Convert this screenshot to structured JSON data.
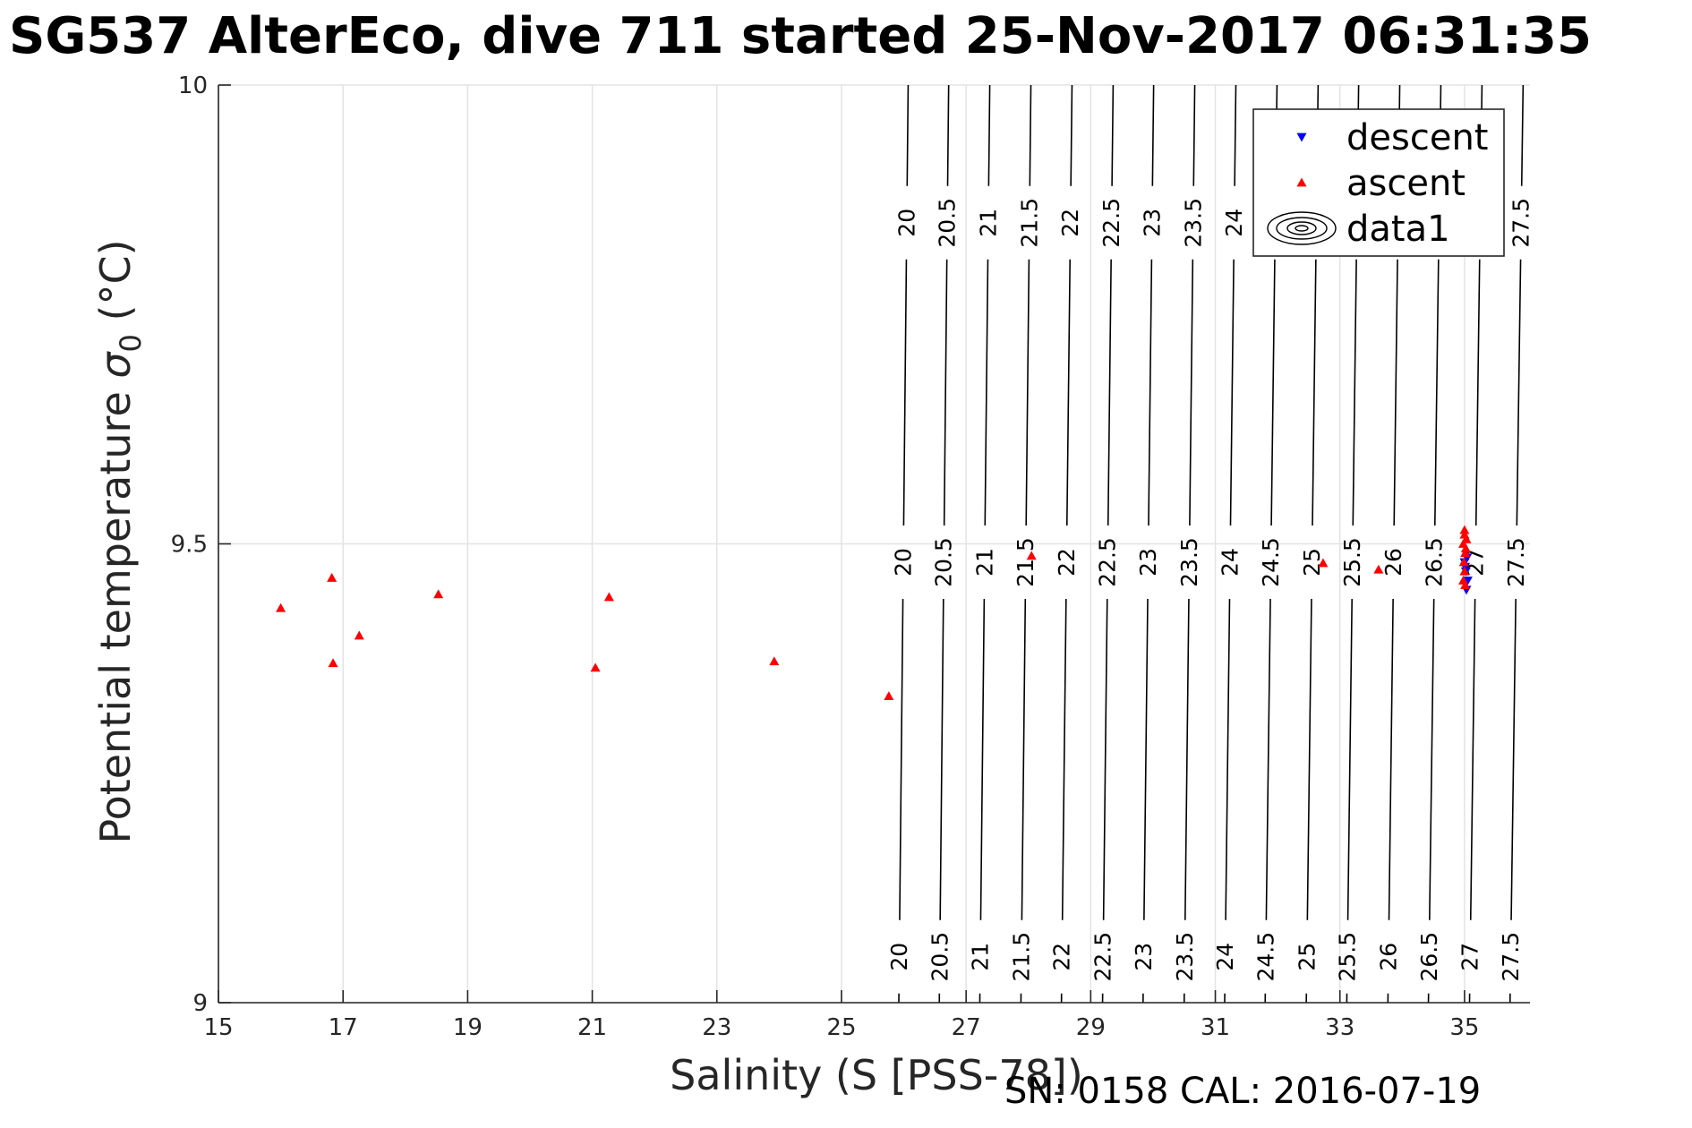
{
  "title": "SG537 AlterEco, dive 711 started 25-Nov-2017 06:31:35",
  "footer": "SN: 0158  CAL: 2016-07-19",
  "chart_data": {
    "type": "scatter",
    "xlabel": "Salinity (S [PSS-78])",
    "ylabel": "Potential temperature σ₀ (°C)",
    "ylabel_main": "Potential temperature ",
    "ylabel_sigma": "σ",
    "ylabel_sub": "0",
    "ylabel_unit": " (°C)",
    "xlim": [
      15,
      36.05
    ],
    "ylim": [
      9,
      10
    ],
    "xticks": [
      "15",
      "17",
      "19",
      "21",
      "23",
      "25",
      "27",
      "29",
      "31",
      "33",
      "35"
    ],
    "yticks": [
      "9",
      "9.5",
      "10"
    ],
    "grid": true,
    "legend": {
      "placement": "top-right",
      "entries": [
        "descent",
        "ascent",
        "data1"
      ]
    },
    "series": [
      {
        "name": "descent",
        "color": "#0000ff",
        "marker": "triangle-down",
        "points": [
          [
            35.02,
            9.47
          ],
          [
            35.05,
            9.46
          ],
          [
            35.0,
            9.48
          ],
          [
            35.04,
            9.485
          ],
          [
            35.03,
            9.45
          ],
          [
            35.01,
            9.475
          ]
        ]
      },
      {
        "name": "ascent",
        "color": "#ff0000",
        "marker": "triangle-up",
        "points": [
          [
            16.0,
            9.43
          ],
          [
            16.82,
            9.463
          ],
          [
            16.84,
            9.37
          ],
          [
            17.26,
            9.4
          ],
          [
            18.53,
            9.445
          ],
          [
            21.05,
            9.365
          ],
          [
            21.27,
            9.442
          ],
          [
            23.92,
            9.372
          ],
          [
            25.76,
            9.334
          ],
          [
            28.05,
            9.487
          ],
          [
            32.73,
            9.479
          ],
          [
            33.62,
            9.472
          ],
          [
            34.98,
            9.5
          ],
          [
            35.0,
            9.51
          ],
          [
            35.01,
            9.49
          ],
          [
            34.99,
            9.48
          ],
          [
            35.02,
            9.495
          ],
          [
            35.0,
            9.47
          ],
          [
            35.03,
            9.505
          ],
          [
            34.98,
            9.46
          ],
          [
            35.01,
            9.455
          ],
          [
            35.0,
            9.515
          ]
        ]
      }
    ],
    "contours": {
      "name": "data1",
      "color": "#000000",
      "levels": [
        "20",
        "20.5",
        "21",
        "21.5",
        "22",
        "22.5",
        "23",
        "23.5",
        "24",
        "24.5",
        "25",
        "25.5",
        "26",
        "26.5",
        "27",
        "27.5"
      ],
      "salinity_at_9": [
        25.92,
        26.57,
        27.22,
        27.88,
        28.53,
        29.19,
        29.84,
        30.5,
        31.15,
        31.8,
        32.46,
        33.11,
        33.77,
        34.42,
        35.08,
        35.73
      ],
      "salinity_at_10": [
        26.07,
        26.72,
        27.38,
        28.04,
        28.7,
        29.36,
        30.01,
        30.67,
        31.33,
        31.99,
        32.65,
        33.3,
        33.96,
        34.62,
        35.28,
        35.94
      ]
    }
  }
}
